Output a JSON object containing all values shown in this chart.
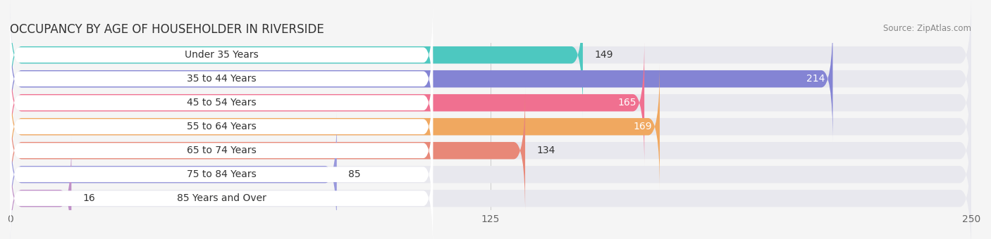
{
  "title": "OCCUPANCY BY AGE OF HOUSEHOLDER IN RIVERSIDE",
  "source": "Source: ZipAtlas.com",
  "categories": [
    "Under 35 Years",
    "35 to 44 Years",
    "45 to 54 Years",
    "55 to 64 Years",
    "65 to 74 Years",
    "75 to 84 Years",
    "85 Years and Over"
  ],
  "values": [
    149,
    214,
    165,
    169,
    134,
    85,
    16
  ],
  "bar_colors": [
    "#4DC8C0",
    "#8484D4",
    "#F07090",
    "#F0A860",
    "#E88878",
    "#9898DC",
    "#C090C8"
  ],
  "background_color": "#f5f5f5",
  "bar_bg_color": "#e8e8ee",
  "xlim": [
    0,
    250
  ],
  "xticks": [
    0,
    125,
    250
  ],
  "label_fontsize": 10,
  "value_fontsize": 10,
  "title_fontsize": 12
}
